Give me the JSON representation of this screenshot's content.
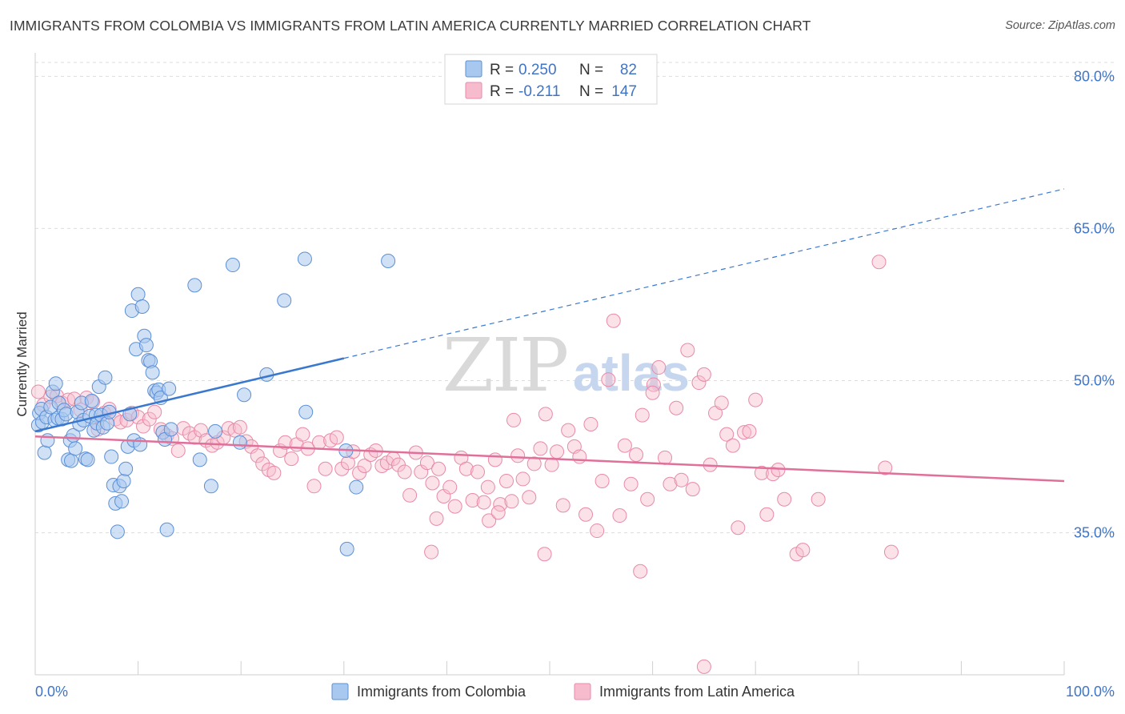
{
  "header": {
    "title": "IMMIGRANTS FROM COLOMBIA VS IMMIGRANTS FROM LATIN AMERICA CURRENTLY MARRIED CORRELATION CHART",
    "source": "Source: ZipAtlas.com"
  },
  "watermark": {
    "zip": "ZIP",
    "atlas": "atlas"
  },
  "legend": {
    "rows": [
      {
        "r_label": "R =",
        "r_value": "0.250",
        "n_label": "N =",
        "n_value": "82"
      },
      {
        "r_label": "R =",
        "r_value": "-0.211",
        "n_label": "N =",
        "n_value": "147"
      }
    ]
  },
  "colors": {
    "blue_fill": "#a9c8ef",
    "blue_stroke": "#5b8fd6",
    "blue_line": "#3a78cf",
    "pink_fill": "#f6bccd",
    "pink_stroke": "#e98aa8",
    "pink_line": "#e0709a",
    "tick_text": "#3f74c6",
    "grid": "#dddddd"
  },
  "chart_data": {
    "type": "scatter",
    "title": "IMMIGRANTS FROM COLOMBIA VS IMMIGRANTS FROM LATIN AMERICA CURRENTLY MARRIED CORRELATION CHART",
    "xlabel": "",
    "ylabel": "Currently Married",
    "xlim": [
      0,
      100
    ],
    "ylim": [
      21.0,
      82.0
    ],
    "x_tick_labels": [
      "0.0%",
      "100.0%"
    ],
    "y_ticks": [
      35,
      50,
      65,
      80
    ],
    "y_tick_labels": [
      "35.0%",
      "50.0%",
      "65.0%",
      "80.0%"
    ],
    "grid": true,
    "legend_position": "top-center",
    "series": [
      {
        "name": "Immigrants from Colombia",
        "color": "#a9c8ef",
        "trend": {
          "x": [
            0.0,
            30.0
          ],
          "y": [
            45.0,
            52.2
          ],
          "dashed_to": [
            100.0,
            68.9
          ]
        },
        "points": [
          [
            0.3,
            45.6
          ],
          [
            0.4,
            46.8
          ],
          [
            0.6,
            47.2
          ],
          [
            0.7,
            45.9
          ],
          [
            0.9,
            42.9
          ],
          [
            1.1,
            46.4
          ],
          [
            1.2,
            44.1
          ],
          [
            1.5,
            47.4
          ],
          [
            1.7,
            48.9
          ],
          [
            1.9,
            46.1
          ],
          [
            2.0,
            49.7
          ],
          [
            2.2,
            46.3
          ],
          [
            2.3,
            47.8
          ],
          [
            2.6,
            46.2
          ],
          [
            2.8,
            47.1
          ],
          [
            3.0,
            46.7
          ],
          [
            3.2,
            42.2
          ],
          [
            3.4,
            44.1
          ],
          [
            3.5,
            42.1
          ],
          [
            3.7,
            44.6
          ],
          [
            3.9,
            43.3
          ],
          [
            4.1,
            46.9
          ],
          [
            4.3,
            45.7
          ],
          [
            4.5,
            47.8
          ],
          [
            4.7,
            46.1
          ],
          [
            4.9,
            42.3
          ],
          [
            5.1,
            42.2
          ],
          [
            5.3,
            46.5
          ],
          [
            5.5,
            48.0
          ],
          [
            5.7,
            45.1
          ],
          [
            5.9,
            46.6
          ],
          [
            6.0,
            45.8
          ],
          [
            6.2,
            49.4
          ],
          [
            6.4,
            46.6
          ],
          [
            6.6,
            45.4
          ],
          [
            6.8,
            50.3
          ],
          [
            7.0,
            45.8
          ],
          [
            7.2,
            46.9
          ],
          [
            7.4,
            42.5
          ],
          [
            7.6,
            39.7
          ],
          [
            7.8,
            37.9
          ],
          [
            8.0,
            35.1
          ],
          [
            8.2,
            39.6
          ],
          [
            8.4,
            38.1
          ],
          [
            8.6,
            40.1
          ],
          [
            8.8,
            41.3
          ],
          [
            9.0,
            43.5
          ],
          [
            9.2,
            46.7
          ],
          [
            9.4,
            56.9
          ],
          [
            9.6,
            44.1
          ],
          [
            9.8,
            53.1
          ],
          [
            10.0,
            58.5
          ],
          [
            10.2,
            43.7
          ],
          [
            10.4,
            57.3
          ],
          [
            10.6,
            54.4
          ],
          [
            10.8,
            53.5
          ],
          [
            11.0,
            52.0
          ],
          [
            11.2,
            51.9
          ],
          [
            11.4,
            50.8
          ],
          [
            11.6,
            49.0
          ],
          [
            11.8,
            48.8
          ],
          [
            12.0,
            49.1
          ],
          [
            12.2,
            48.3
          ],
          [
            12.4,
            44.9
          ],
          [
            12.6,
            44.2
          ],
          [
            12.8,
            35.3
          ],
          [
            13.0,
            49.2
          ],
          [
            13.2,
            45.2
          ],
          [
            15.5,
            59.4
          ],
          [
            16.0,
            42.2
          ],
          [
            17.1,
            39.6
          ],
          [
            17.5,
            45.0
          ],
          [
            19.2,
            61.4
          ],
          [
            20.3,
            48.6
          ],
          [
            22.5,
            50.6
          ],
          [
            19.9,
            43.9
          ],
          [
            24.2,
            57.9
          ],
          [
            26.2,
            62.0
          ],
          [
            26.3,
            46.9
          ],
          [
            30.3,
            33.4
          ],
          [
            30.2,
            43.1
          ],
          [
            31.2,
            39.5
          ],
          [
            34.3,
            61.8
          ]
        ]
      },
      {
        "name": "Immigrants from Latin America",
        "color": "#f6bccd",
        "trend": {
          "x": [
            0.0,
            100.0
          ],
          "y": [
            44.5,
            40.1
          ]
        },
        "points": [
          [
            0.3,
            48.9
          ],
          [
            0.8,
            47.6
          ],
          [
            1.5,
            48.4
          ],
          [
            2.1,
            48.5
          ],
          [
            2.6,
            47.8
          ],
          [
            3.2,
            48.1
          ],
          [
            3.8,
            48.2
          ],
          [
            4.4,
            47.1
          ],
          [
            5.0,
            48.3
          ],
          [
            5.6,
            47.9
          ],
          [
            6.1,
            45.2
          ],
          [
            6.7,
            46.8
          ],
          [
            7.2,
            47.2
          ],
          [
            7.8,
            46.2
          ],
          [
            8.3,
            45.9
          ],
          [
            8.9,
            46.1
          ],
          [
            9.4,
            46.8
          ],
          [
            10.0,
            46.4
          ],
          [
            10.5,
            45.5
          ],
          [
            11.1,
            46.2
          ],
          [
            11.6,
            46.9
          ],
          [
            12.2,
            45.2
          ],
          [
            12.8,
            44.6
          ],
          [
            13.3,
            44.3
          ],
          [
            13.9,
            43.1
          ],
          [
            14.4,
            45.3
          ],
          [
            15.0,
            44.8
          ],
          [
            15.5,
            44.4
          ],
          [
            16.1,
            45.1
          ],
          [
            16.6,
            44.1
          ],
          [
            17.2,
            43.6
          ],
          [
            17.7,
            43.9
          ],
          [
            18.3,
            44.4
          ],
          [
            18.8,
            45.3
          ],
          [
            19.4,
            45.1
          ],
          [
            19.9,
            45.4
          ],
          [
            20.5,
            44.0
          ],
          [
            21.0,
            43.5
          ],
          [
            21.6,
            42.6
          ],
          [
            22.1,
            41.8
          ],
          [
            22.7,
            41.2
          ],
          [
            23.2,
            40.9
          ],
          [
            23.8,
            43.1
          ],
          [
            24.3,
            43.9
          ],
          [
            24.9,
            42.3
          ],
          [
            25.4,
            43.7
          ],
          [
            26.0,
            44.7
          ],
          [
            26.5,
            43.3
          ],
          [
            27.1,
            39.6
          ],
          [
            27.6,
            43.9
          ],
          [
            28.2,
            41.3
          ],
          [
            28.7,
            44.1
          ],
          [
            29.3,
            44.4
          ],
          [
            29.8,
            41.3
          ],
          [
            30.4,
            41.9
          ],
          [
            30.9,
            43.0
          ],
          [
            31.5,
            40.9
          ],
          [
            32.0,
            41.6
          ],
          [
            32.6,
            42.7
          ],
          [
            33.1,
            43.1
          ],
          [
            33.7,
            41.6
          ],
          [
            34.2,
            41.9
          ],
          [
            34.8,
            42.3
          ],
          [
            35.3,
            41.7
          ],
          [
            35.9,
            41.0
          ],
          [
            36.4,
            38.7
          ],
          [
            37.0,
            42.9
          ],
          [
            37.5,
            41.0
          ],
          [
            38.1,
            41.9
          ],
          [
            38.6,
            39.9
          ],
          [
            39.2,
            41.3
          ],
          [
            39.7,
            38.6
          ],
          [
            40.3,
            39.5
          ],
          [
            40.8,
            37.6
          ],
          [
            41.4,
            42.4
          ],
          [
            41.9,
            41.3
          ],
          [
            42.5,
            38.2
          ],
          [
            43.0,
            41.0
          ],
          [
            43.6,
            38.0
          ],
          [
            44.1,
            36.2
          ],
          [
            44.7,
            42.2
          ],
          [
            45.2,
            37.8
          ],
          [
            45.8,
            40.1
          ],
          [
            46.3,
            38.1
          ],
          [
            46.9,
            42.6
          ],
          [
            47.4,
            40.3
          ],
          [
            48.0,
            38.5
          ],
          [
            48.5,
            41.8
          ],
          [
            49.1,
            43.3
          ],
          [
            49.6,
            46.7
          ],
          [
            50.2,
            41.7
          ],
          [
            50.7,
            43.0
          ],
          [
            51.3,
            37.7
          ],
          [
            51.8,
            45.1
          ],
          [
            52.4,
            43.5
          ],
          [
            52.9,
            42.5
          ],
          [
            53.5,
            36.8
          ],
          [
            54.0,
            45.7
          ],
          [
            54.6,
            35.2
          ],
          [
            55.1,
            40.1
          ],
          [
            55.7,
            50.1
          ],
          [
            56.2,
            55.9
          ],
          [
            56.8,
            36.7
          ],
          [
            57.3,
            43.6
          ],
          [
            57.9,
            39.8
          ],
          [
            58.4,
            42.7
          ],
          [
            59.0,
            46.6
          ],
          [
            59.5,
            38.3
          ],
          [
            60.1,
            49.6
          ],
          [
            60.6,
            51.3
          ],
          [
            61.2,
            42.4
          ],
          [
            61.7,
            39.8
          ],
          [
            62.3,
            47.3
          ],
          [
            62.8,
            40.2
          ],
          [
            63.4,
            53.0
          ],
          [
            63.9,
            39.3
          ],
          [
            64.5,
            49.8
          ],
          [
            65.0,
            50.6
          ],
          [
            65.6,
            41.7
          ],
          [
            66.1,
            46.8
          ],
          [
            66.7,
            47.8
          ],
          [
            67.2,
            44.7
          ],
          [
            67.8,
            43.6
          ],
          [
            68.3,
            35.5
          ],
          [
            68.9,
            44.9
          ],
          [
            69.4,
            45.0
          ],
          [
            70.0,
            48.1
          ],
          [
            70.6,
            40.9
          ],
          [
            71.1,
            36.8
          ],
          [
            71.7,
            40.8
          ],
          [
            72.2,
            41.2
          ],
          [
            72.8,
            38.3
          ],
          [
            74.0,
            32.9
          ],
          [
            74.6,
            33.3
          ],
          [
            76.1,
            38.3
          ],
          [
            82.0,
            61.7
          ],
          [
            82.6,
            41.4
          ],
          [
            83.2,
            33.1
          ],
          [
            65.0,
            21.8
          ],
          [
            58.8,
            31.2
          ],
          [
            49.5,
            32.9
          ],
          [
            38.5,
            33.1
          ],
          [
            39.0,
            36.4
          ],
          [
            60.0,
            48.8
          ],
          [
            45.0,
            37.0
          ],
          [
            44.0,
            39.5
          ],
          [
            46.5,
            46.1
          ]
        ]
      }
    ]
  },
  "bottom_legend": {
    "items": [
      "Immigrants from Colombia",
      "Immigrants from Latin America"
    ]
  }
}
